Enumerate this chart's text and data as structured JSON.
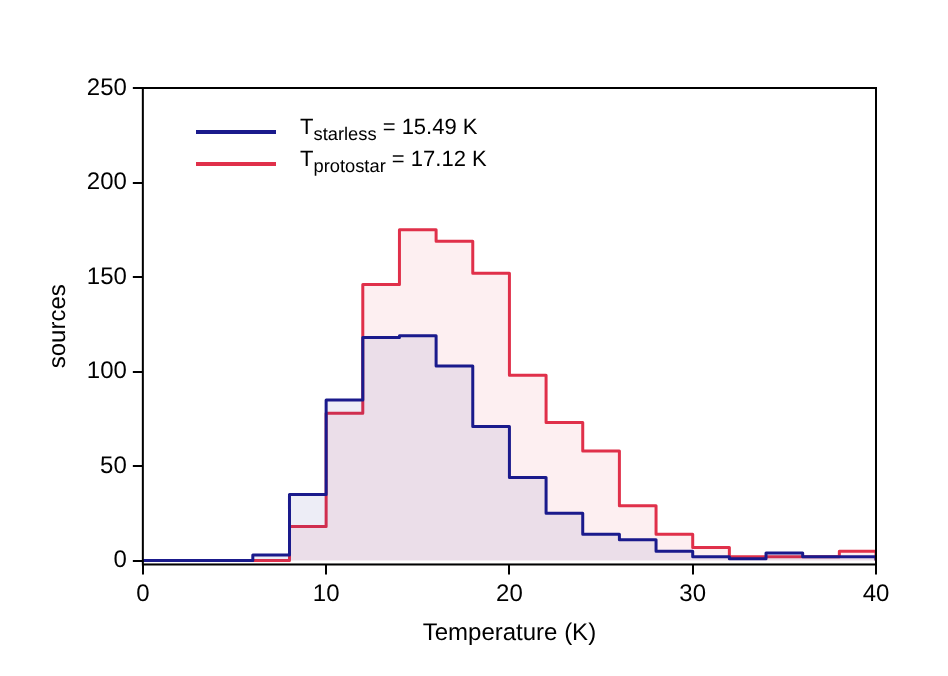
{
  "chart_data": {
    "type": "histogram",
    "xlabel": "Temperature (K)",
    "ylabel": "sources",
    "bins": [
      0,
      2,
      4,
      6,
      8,
      10,
      12,
      14,
      16,
      18,
      20,
      22,
      24,
      26,
      28,
      30,
      32,
      34,
      36,
      38,
      40
    ],
    "series": [
      {
        "name": "T$_{starless}$ = 15.49 K",
        "color": "#1a1a8c",
        "values": [
          0,
          0,
          0,
          3,
          35,
          85,
          118,
          119,
          103,
          71,
          44,
          25,
          14,
          11,
          5,
          2,
          1,
          4,
          2,
          2
        ]
      },
      {
        "name": "T$_{protostar}$ = 17.12 K",
        "color": "#e0304a",
        "values": [
          0,
          0,
          0,
          0,
          18,
          78,
          146,
          175,
          169,
          152,
          98,
          73,
          58,
          29,
          14,
          7,
          2,
          2,
          2,
          5
        ]
      }
    ],
    "xlim": [
      0,
      40
    ],
    "xticks": [
      0,
      10,
      20,
      30,
      40
    ],
    "ylim": [
      -2,
      250
    ],
    "yticks": [
      0,
      50,
      100,
      150,
      200,
      250
    ],
    "grid": false,
    "legend": "top left"
  }
}
